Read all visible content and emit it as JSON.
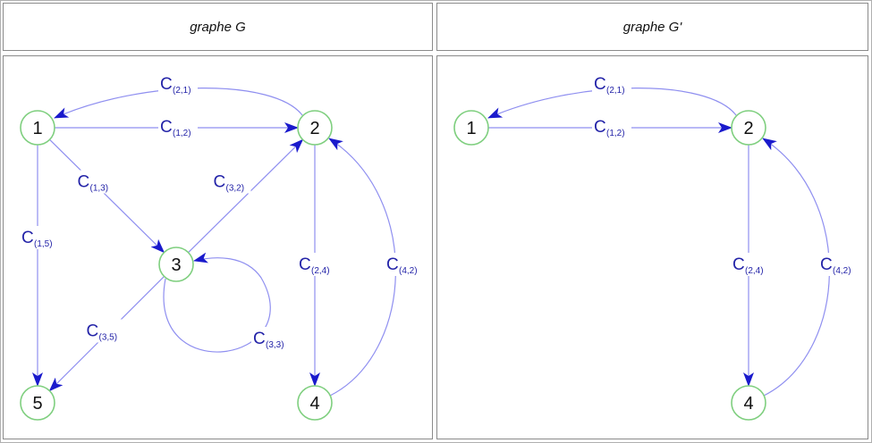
{
  "headers": {
    "left": "graphe G",
    "right": "graphe G'"
  },
  "colors": {
    "edge": "#8f8ff0",
    "arrow": "#1a1acc",
    "node_stroke": "#7fcf7f",
    "label": "#2323a8"
  },
  "graphs": [
    {
      "name": "graphe G",
      "nodes": [
        "1",
        "2",
        "3",
        "4",
        "5"
      ],
      "edges": [
        {
          "from": "2",
          "to": "1",
          "label": "C",
          "sub": "(2,1)"
        },
        {
          "from": "1",
          "to": "2",
          "label": "C",
          "sub": "(1,2)"
        },
        {
          "from": "1",
          "to": "3",
          "label": "C",
          "sub": "(1,3)"
        },
        {
          "from": "1",
          "to": "5",
          "label": "C",
          "sub": "(1,5)"
        },
        {
          "from": "3",
          "to": "2",
          "label": "C",
          "sub": "(3,2)"
        },
        {
          "from": "2",
          "to": "4",
          "label": "C",
          "sub": "(2,4)"
        },
        {
          "from": "4",
          "to": "2",
          "label": "C",
          "sub": "(4,2)"
        },
        {
          "from": "3",
          "to": "5",
          "label": "C",
          "sub": "(3,5)"
        },
        {
          "from": "3",
          "to": "3",
          "label": "C",
          "sub": "(3,3)"
        }
      ]
    },
    {
      "name": "graphe G'",
      "nodes": [
        "1",
        "2",
        "4"
      ],
      "edges": [
        {
          "from": "2",
          "to": "1",
          "label": "C",
          "sub": "(2,1)"
        },
        {
          "from": "1",
          "to": "2",
          "label": "C",
          "sub": "(1,2)"
        },
        {
          "from": "2",
          "to": "4",
          "label": "C",
          "sub": "(2,4)"
        },
        {
          "from": "4",
          "to": "2",
          "label": "C",
          "sub": "(4,2)"
        }
      ]
    }
  ]
}
